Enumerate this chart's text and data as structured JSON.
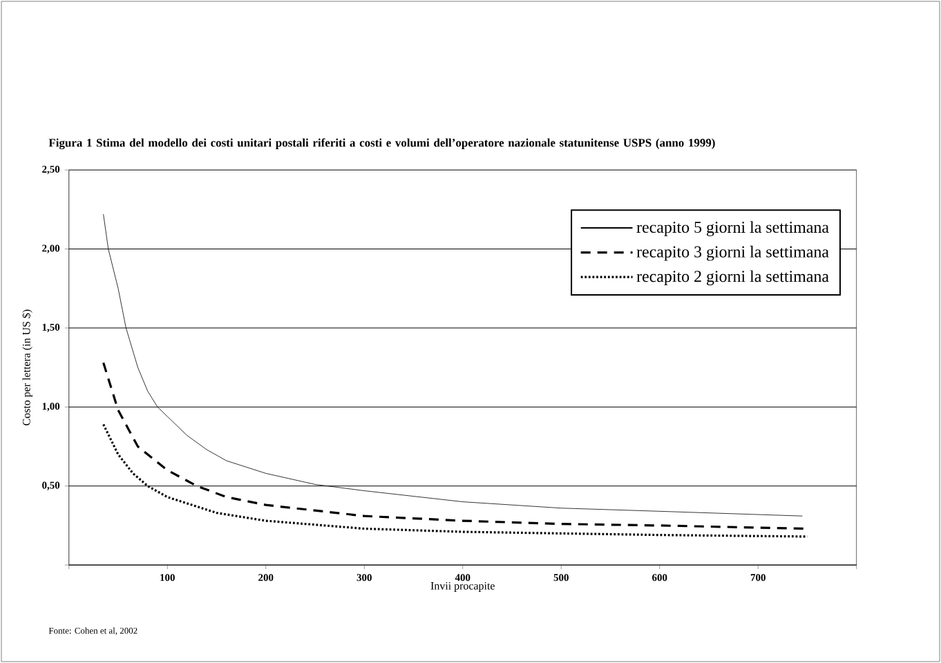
{
  "chart_data": {
    "type": "line",
    "title": "Figura 1  Stima del modello dei costi unitari postali riferiti a costi e volumi dell’operatore nazionale statunitense USPS (anno 1999)",
    "xlabel": "Invii procapite",
    "ylabel": "Costo per lettera (in US $)",
    "annotations": [
      "Fonte: Cohen et al, 2002"
    ],
    "xlim": [
      0,
      800
    ],
    "ylim": [
      0,
      2.5
    ],
    "xticks": [
      {
        "value": 0,
        "label": null
      },
      100,
      200,
      300,
      400,
      500,
      600,
      700,
      {
        "value": 800,
        "label": null
      }
    ],
    "yticks": [
      {
        "value": 0,
        "label": null
      },
      {
        "value": 0.5,
        "label": "0,50"
      },
      {
        "value": 1,
        "label": "1,00"
      },
      {
        "value": 1.5,
        "label": "1,50"
      },
      {
        "value": 2,
        "label": "2,00"
      },
      {
        "value": 2.5,
        "label": "2,50"
      }
    ],
    "grid": "y",
    "legend": "top right",
    "series": [
      {
        "name": "recapito 5 giorni la settimana",
        "color": "#000000",
        "line_style": "solid",
        "x": [
          35,
          40,
          50,
          58,
          70,
          80,
          90,
          100,
          120,
          140,
          160,
          200,
          250,
          300,
          400,
          500,
          600,
          745
        ],
        "values": [
          2.22,
          2.0,
          1.75,
          1.5,
          1.25,
          1.1,
          1.0,
          0.94,
          0.82,
          0.73,
          0.66,
          0.58,
          0.51,
          0.47,
          0.4,
          0.36,
          0.34,
          0.31
        ]
      },
      {
        "name": "recapito 3 giorni la settimana",
        "color": "#000000",
        "line_style": "dashed",
        "x": [
          35,
          50,
          70,
          100,
          130,
          160,
          200,
          300,
          400,
          500,
          600,
          750
        ],
        "values": [
          1.28,
          0.98,
          0.75,
          0.6,
          0.5,
          0.43,
          0.38,
          0.31,
          0.28,
          0.26,
          0.25,
          0.23
        ]
      },
      {
        "name": "recapito 2 giorni la settimana",
        "color": "#000000",
        "line_style": "dotted",
        "x": [
          35,
          50,
          65,
          80,
          100,
          150,
          200,
          300,
          400,
          500,
          600,
          750
        ],
        "values": [
          0.89,
          0.7,
          0.58,
          0.5,
          0.43,
          0.33,
          0.28,
          0.23,
          0.21,
          0.2,
          0.19,
          0.18
        ]
      }
    ]
  }
}
